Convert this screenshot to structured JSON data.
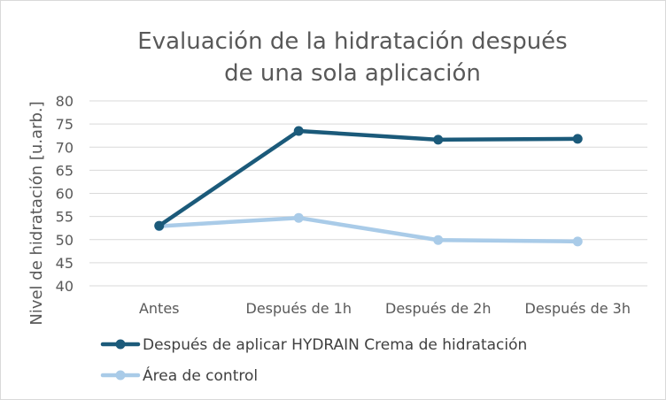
{
  "chart_data": {
    "type": "line",
    "title_lines": [
      "Evaluación de la hidratación después",
      "de una sola aplicación"
    ],
    "xlabel": "",
    "ylabel": "Nivel de hidratación [u.arb.]",
    "categories": [
      "Antes",
      "Después de 1h",
      "Después de 2h",
      "Después de 3h"
    ],
    "ylim": [
      40,
      80
    ],
    "yticks": [
      40,
      45,
      50,
      55,
      60,
      65,
      70,
      75,
      80
    ],
    "grid": true,
    "legend_position": "bottom",
    "series": [
      {
        "name": "Después de aplicar HYDRAIN Crema de hidratación",
        "color": "#1b5a7a",
        "values": [
          53.0,
          73.5,
          71.6,
          71.8
        ]
      },
      {
        "name": "Área de control",
        "color": "#a9cbe8",
        "values": [
          52.9,
          54.7,
          49.9,
          49.6
        ]
      }
    ]
  }
}
